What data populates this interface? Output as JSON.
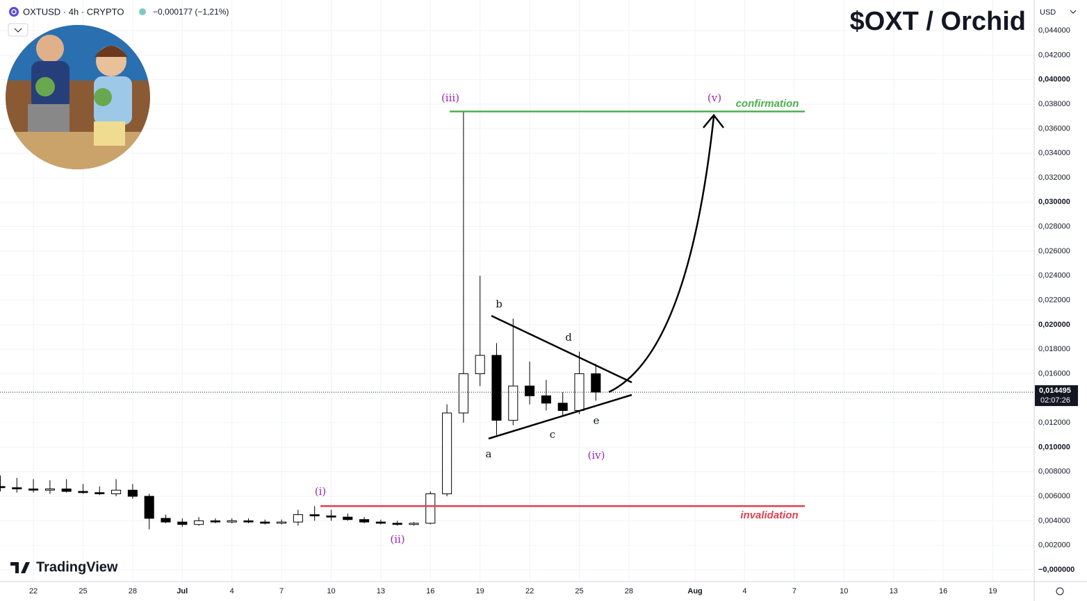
{
  "chart_data": {
    "type": "candlestick",
    "title": "$OXT / Orchid",
    "symbol": "OXTUSD · 4h · CRYPTO",
    "change": "−0,000177 (−1,21%)",
    "currency": "USD",
    "brand": "TradingView",
    "x": [
      -2,
      -1,
      0,
      1,
      2,
      3,
      4,
      5,
      6,
      7,
      8,
      9,
      10,
      11,
      12,
      13,
      14,
      15,
      16,
      17,
      18,
      19,
      20,
      21,
      22,
      23,
      24,
      25,
      26,
      27,
      28,
      29,
      30,
      31,
      32,
      33,
      34
    ],
    "open": [
      0.0068,
      0.0067,
      0.0066,
      0.0065,
      0.0066,
      0.0064,
      0.0063,
      0.0062,
      0.0065,
      0.006,
      0.0042,
      0.0039,
      0.0037,
      0.004,
      0.0039,
      0.004,
      0.0039,
      0.0038,
      0.0039,
      0.0045,
      0.0044,
      0.0043,
      0.0041,
      0.0039,
      0.0038,
      0.0037,
      0.0038,
      0.0062,
      0.0128,
      0.016,
      0.0175,
      0.0122,
      0.015,
      0.0142,
      0.0136,
      0.013,
      0.016
    ],
    "high": [
      0.0077,
      0.0075,
      0.0074,
      0.0073,
      0.0074,
      0.007,
      0.0068,
      0.0074,
      0.007,
      0.0062,
      0.0045,
      0.0042,
      0.0043,
      0.0042,
      0.0042,
      0.0042,
      0.0041,
      0.0041,
      0.0049,
      0.0052,
      0.0049,
      0.0046,
      0.0043,
      0.0041,
      0.004,
      0.0039,
      0.0064,
      0.0135,
      0.0374,
      0.024,
      0.0185,
      0.0205,
      0.017,
      0.0155,
      0.0145,
      0.0178,
      0.0168
    ],
    "low": [
      0.0064,
      0.0063,
      0.0063,
      0.0062,
      0.0063,
      0.0062,
      0.0061,
      0.006,
      0.0058,
      0.0033,
      0.0038,
      0.0035,
      0.0036,
      0.0038,
      0.0038,
      0.0038,
      0.0037,
      0.0037,
      0.0036,
      0.004,
      0.004,
      0.004,
      0.0038,
      0.0037,
      0.0036,
      0.0036,
      0.0037,
      0.006,
      0.012,
      0.015,
      0.011,
      0.0118,
      0.0135,
      0.013,
      0.0125,
      0.0127,
      0.0138
    ],
    "close": [
      0.0067,
      0.0066,
      0.0065,
      0.0066,
      0.0064,
      0.0063,
      0.0062,
      0.0065,
      0.006,
      0.0042,
      0.0039,
      0.0037,
      0.004,
      0.0039,
      0.004,
      0.0039,
      0.0038,
      0.0039,
      0.0045,
      0.0044,
      0.0043,
      0.0041,
      0.0039,
      0.0038,
      0.0037,
      0.0038,
      0.0062,
      0.0128,
      0.016,
      0.0175,
      0.0122,
      0.015,
      0.0142,
      0.0136,
      0.013,
      0.016,
      0.0145
    ],
    "up_color": "#ffffff",
    "down_color": "#000000",
    "xlim": [
      -2.02,
      60.5
    ],
    "ylim": [
      -0.00096,
      0.0465
    ],
    "xticks": [
      {
        "value": 0,
        "label": "22"
      },
      {
        "value": 3,
        "label": "25"
      },
      {
        "value": 6,
        "label": "28"
      },
      {
        "value": 9,
        "label": "Jul"
      },
      {
        "value": 12,
        "label": "4"
      },
      {
        "value": 15,
        "label": "7"
      },
      {
        "value": 18,
        "label": "10"
      },
      {
        "value": 21,
        "label": "13"
      },
      {
        "value": 24,
        "label": "16"
      },
      {
        "value": 27,
        "label": "19"
      },
      {
        "value": 30,
        "label": "22"
      },
      {
        "value": 33,
        "label": "25"
      },
      {
        "value": 36,
        "label": "28"
      },
      {
        "value": 40,
        "label": "Aug"
      },
      {
        "value": 43,
        "label": "4"
      },
      {
        "value": 46,
        "label": "7"
      },
      {
        "value": 49,
        "label": "10"
      },
      {
        "value": 52,
        "label": "13"
      },
      {
        "value": 55,
        "label": "16"
      },
      {
        "value": 58,
        "label": "19"
      }
    ],
    "yticks": [
      {
        "value": 0,
        "label": "−0,000000"
      },
      {
        "value": 0.002,
        "label": "0,002000"
      },
      {
        "value": 0.004,
        "label": "0,004000"
      },
      {
        "value": 0.006,
        "label": "0,006000"
      },
      {
        "value": 0.008,
        "label": "0,008000"
      },
      {
        "value": 0.01,
        "label": "0,010000"
      },
      {
        "value": 0.012,
        "label": "0,012000"
      },
      {
        "value": 0.014,
        "label": "0,014000"
      },
      {
        "value": 0.016,
        "label": "0,016000"
      },
      {
        "value": 0.018,
        "label": "0,018000"
      },
      {
        "value": 0.02,
        "label": "0,020000"
      },
      {
        "value": 0.022,
        "label": "0,022000"
      },
      {
        "value": 0.024,
        "label": "0,024000"
      },
      {
        "value": 0.026,
        "label": "0,026000"
      },
      {
        "value": 0.028,
        "label": "0,028000"
      },
      {
        "value": 0.03,
        "label": "0,030000"
      },
      {
        "value": 0.032,
        "label": "0,032000"
      },
      {
        "value": 0.034,
        "label": "0,034000"
      },
      {
        "value": 0.036,
        "label": "0,036000"
      },
      {
        "value": 0.038,
        "label": "0,038000"
      },
      {
        "value": 0.04,
        "label": "0,040000"
      },
      {
        "value": 0.042,
        "label": "0,042000"
      },
      {
        "value": 0.044,
        "label": "0,044000"
      }
    ],
    "grid": true,
    "last_price": {
      "value": 0.014495,
      "label": "0,014495"
    },
    "countdown": "02:07:26",
    "levels": [
      {
        "name": "confirmation",
        "value": 0.0374,
        "color": "#4caf50"
      },
      {
        "name": "invalidation",
        "value": 0.0052,
        "color": "#e04050"
      }
    ],
    "annotations": [
      "(i)",
      "(ii)",
      "(iii)",
      "(iv)",
      "(v)",
      "a",
      "b",
      "c",
      "d",
      "e"
    ]
  }
}
